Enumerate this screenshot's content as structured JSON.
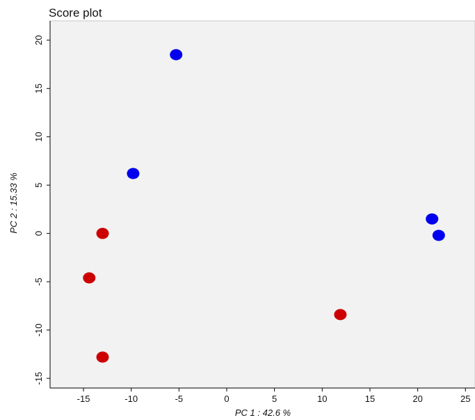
{
  "chart_data": {
    "type": "scatter",
    "title": "Score plot",
    "xlabel": "PC 1 : 42.6 %",
    "ylabel": "PC 2 : 15.33 %",
    "xlim": [
      -18.5,
      26
    ],
    "ylim": [
      -16,
      22
    ],
    "xticks": [
      -15,
      -10,
      -5,
      0,
      5,
      10,
      15,
      20,
      25
    ],
    "yticks": [
      -15,
      -10,
      -5,
      0,
      5,
      10,
      15,
      20
    ],
    "grid": false,
    "legend": "none",
    "plot_background": "#f2f2f2",
    "series": [
      {
        "color": "#0000ee",
        "points": [
          {
            "x": -5.3,
            "y": 18.5
          },
          {
            "x": -9.8,
            "y": 6.2
          },
          {
            "x": 21.5,
            "y": 1.5
          },
          {
            "x": 22.2,
            "y": -0.2
          }
        ]
      },
      {
        "color": "#cc0000",
        "points": [
          {
            "x": -13.0,
            "y": 0.0
          },
          {
            "x": -14.4,
            "y": -4.6
          },
          {
            "x": -13.0,
            "y": -12.8
          },
          {
            "x": 11.9,
            "y": -8.4
          }
        ]
      }
    ]
  }
}
